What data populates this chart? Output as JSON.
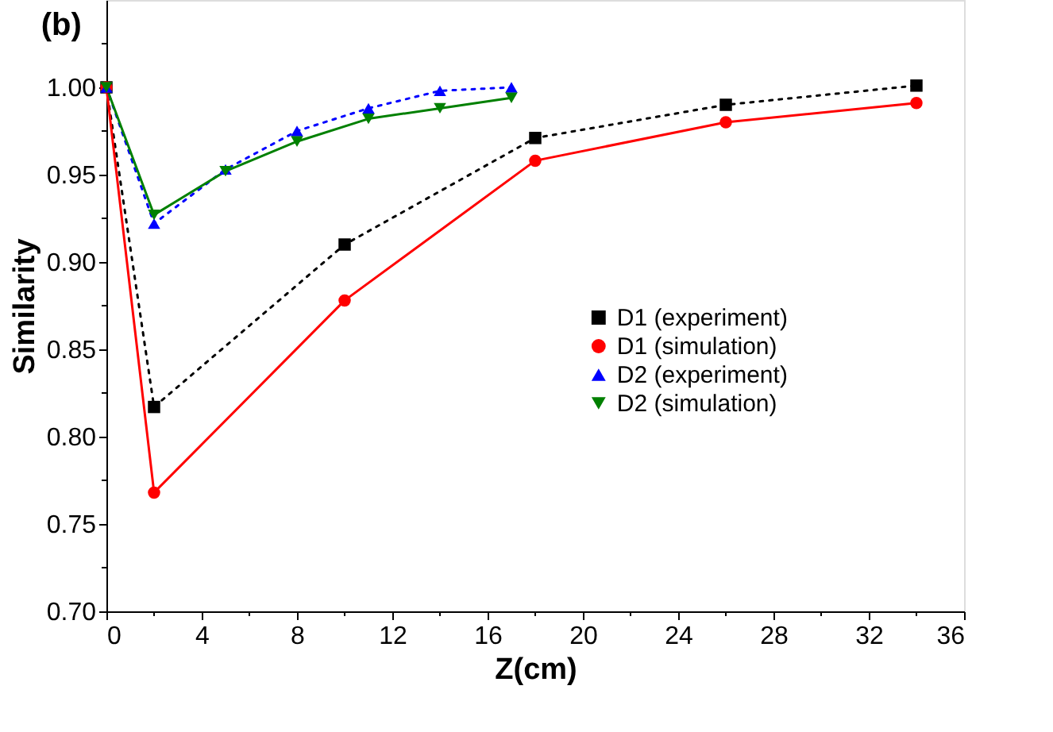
{
  "chart_data": {
    "type": "line",
    "title": "(b)",
    "xlabel": "Z(cm)",
    "ylabel": "Similarity",
    "xlim": [
      0,
      36
    ],
    "ylim": [
      0.7,
      1.05
    ],
    "xticks": [
      0,
      {
        "value": 2,
        "label": null
      },
      4,
      {
        "value": 6,
        "label": null
      },
      8,
      {
        "value": 10,
        "label": null
      },
      12,
      {
        "value": 14,
        "label": null
      },
      16,
      {
        "value": 18,
        "label": null
      },
      20,
      {
        "value": 22,
        "label": null
      },
      24,
      {
        "value": 26,
        "label": null
      },
      28,
      {
        "value": 30,
        "label": null
      },
      32,
      {
        "value": 34,
        "label": null
      },
      36
    ],
    "yticks": [
      {
        "value": 0.7,
        "label": "0.70"
      },
      {
        "value": 0.725,
        "label": null
      },
      {
        "value": 0.75,
        "label": "0.75"
      },
      {
        "value": 0.775,
        "label": null
      },
      {
        "value": 0.8,
        "label": "0.80"
      },
      {
        "value": 0.825,
        "label": null
      },
      {
        "value": 0.85,
        "label": "0.85"
      },
      {
        "value": 0.875,
        "label": null
      },
      {
        "value": 0.9,
        "label": "0.90"
      },
      {
        "value": 0.925,
        "label": null
      },
      {
        "value": 0.95,
        "label": "0.95"
      },
      {
        "value": 0.975,
        "label": null
      },
      {
        "value": 1.0,
        "label": "1.00"
      },
      {
        "value": 1.025,
        "label": null
      }
    ],
    "grid": false,
    "legend": "right",
    "series": [
      {
        "name": "D1 (experiment)",
        "color": "#000000",
        "marker": "square",
        "line_style": "dotted",
        "x": [
          0,
          2,
          10,
          18,
          26,
          34
        ],
        "values": [
          1.0,
          0.817,
          0.91,
          0.971,
          0.99,
          1.001
        ]
      },
      {
        "name": "D1 (simulation)",
        "color": "#ff0000",
        "marker": "circle",
        "line_style": "solid",
        "x": [
          0,
          2,
          10,
          18,
          26,
          34
        ],
        "values": [
          1.0,
          0.768,
          0.878,
          0.958,
          0.98,
          0.991
        ]
      },
      {
        "name": "D2 (experiment)",
        "color": "#0000ff",
        "marker": "triangle",
        "line_style": "dotted",
        "x": [
          0,
          2,
          5,
          8,
          11,
          14,
          17
        ],
        "values": [
          1.0,
          0.922,
          0.953,
          0.975,
          0.988,
          0.998,
          1.0
        ]
      },
      {
        "name": "D2 (simulation)",
        "color": "#008000",
        "marker": "triangle-down",
        "line_style": "solid",
        "x": [
          0,
          2,
          5,
          8,
          11,
          14,
          17
        ],
        "values": [
          1.0,
          0.927,
          0.952,
          0.969,
          0.982,
          0.988,
          0.994
        ]
      }
    ]
  }
}
